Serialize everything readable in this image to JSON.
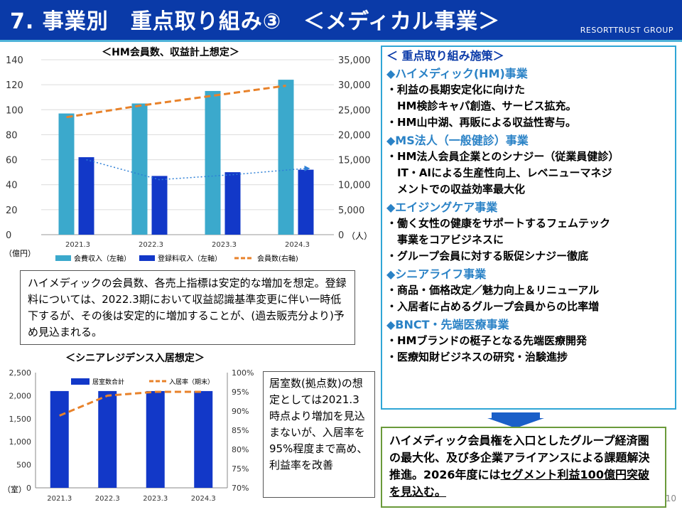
{
  "header": {
    "title": "7. 事業別　重点取り組み③　＜メディカル事業＞",
    "brand": "RESORTTRUST GROUP"
  },
  "hm_chart": {
    "title": "＜HM会員数、収益計上想定＞",
    "left_unit": "（億円）",
    "right_unit": "（人）",
    "left_ticks": [
      "140",
      "120",
      "100",
      "80",
      "60",
      "40",
      "20",
      "0"
    ],
    "right_ticks": [
      "35,000",
      "30,000",
      "25,000",
      "20,000",
      "15,000",
      "10,000",
      "5,000",
      "0"
    ],
    "legend": [
      "会費収入（左軸）",
      "登録料収入（左軸）",
      "会員数(右軸)"
    ]
  },
  "senior_chart": {
    "title": "＜シニアレジデンス入居想定＞",
    "left_unit": "（室）",
    "left_ticks": [
      "2,500",
      "2,000",
      "1,500",
      "1,000",
      "500",
      "0"
    ],
    "right_ticks": [
      "100%",
      "95%",
      "90%",
      "85%",
      "80%",
      "75%",
      "70%"
    ],
    "legend": [
      "居室数合計",
      "入居率（期末）"
    ]
  },
  "chart_data": [
    {
      "type": "bar",
      "title": "＜HM会員数、収益計上想定＞",
      "categories": [
        "2021.3",
        "2022.3",
        "2023.3",
        "2024.3"
      ],
      "ylim": [
        0,
        140
      ],
      "y2lim": [
        0,
        35000
      ],
      "series": [
        {
          "name": "会費収入（左軸）",
          "type": "bar",
          "axis": "left",
          "color": "#3ba9cc",
          "values": [
            97,
            105,
            115,
            124
          ]
        },
        {
          "name": "登録料収入（左軸）",
          "type": "bar",
          "axis": "left",
          "color": "#1238c8",
          "values": [
            62,
            47,
            50,
            52
          ]
        },
        {
          "name": "会員数(右軸)",
          "type": "line",
          "axis": "right",
          "color": "#e8822a",
          "style": "dashed",
          "values": [
            23500,
            25800,
            27800,
            29800
          ]
        },
        {
          "name": "",
          "type": "line",
          "axis": "left",
          "color": "#2d7fd6",
          "style": "dotted",
          "values": [
            60,
            44,
            48,
            53
          ]
        }
      ],
      "legend_position": "bottom",
      "grid": true
    },
    {
      "type": "bar",
      "title": "＜シニアレジデンス入居想定＞",
      "categories": [
        "2021.3",
        "2022.3",
        "2023.3",
        "2024.3"
      ],
      "ylim": [
        0,
        2500
      ],
      "y2lim": [
        70,
        100
      ],
      "series": [
        {
          "name": "居室数合計",
          "type": "bar",
          "axis": "left",
          "color": "#1238c8",
          "values": [
            2100,
            2100,
            2100,
            2100
          ]
        },
        {
          "name": "入居率（期末）",
          "type": "line",
          "axis": "right",
          "color": "#e8822a",
          "style": "dashed",
          "values": [
            88.8,
            94,
            95,
            95
          ]
        }
      ],
      "legend_position": "top-right",
      "grid": false
    }
  ],
  "hm_note": "ハイメディックの会員数、各売上指標は安定的な増加を想定。登録料については、2022.3期において収益認識基準変更に伴い一時低下するが、その後は安定的に増加することが、(過去販売分より)予め見込まれる。",
  "senior_note": "居室数(拠点数)の想定としては2021.3時点より増加を見込まないが、入居率を95%程度まで高め、利益率を改善",
  "initiatives": {
    "title": "＜ 重点取り組み施策＞",
    "sections": [
      {
        "title": "◆ハイメディック(HM)事業",
        "items": [
          "・利益の長期安定化に向けた",
          "　HM検診キャパ創造、サービス拡充。",
          "・HM山中湖、再販による収益性寄与。"
        ]
      },
      {
        "title": "◆MS法人（一般健診）事業",
        "items": [
          "・HM法人会員企業とのシナジー（従業員健診）",
          "　IT・AIによる生産性向上、レベニューマネジ",
          "　メントでの収益効率最大化"
        ]
      },
      {
        "title": "◆エイジングケア事業",
        "items": [
          "・働く女性の健康をサポートするフェムテック",
          "　事業をコアビジネスに",
          "・グループ会員に対する販促シナジー徹底"
        ]
      },
      {
        "title": "◆シニアライフ事業",
        "items": [
          "・商品・価格改定／魅力向上＆リニューアル",
          "・入居者に占めるグループ会員からの比率増"
        ]
      },
      {
        "title": "◆BNCT・先端医療事業",
        "items": [
          "・HMブランドの梃子となる先端医療開発",
          "・医療知財ビジネスの研究・治験進捗"
        ]
      }
    ]
  },
  "conclusion": {
    "text": "ハイメディック会員権を入口としたグループ経済圏の最大化、及び多企業アライアンスによる課題解決推進。2026年度には",
    "emphasis": "セグメント利益100億円突破を見込む。"
  },
  "colors": {
    "header": "#0a3aa8",
    "accent_line": "#4fb3d9",
    "initiatives_border": "#2fa6d6",
    "conclusion_border": "#6a9a3a"
  },
  "page_number": "10"
}
